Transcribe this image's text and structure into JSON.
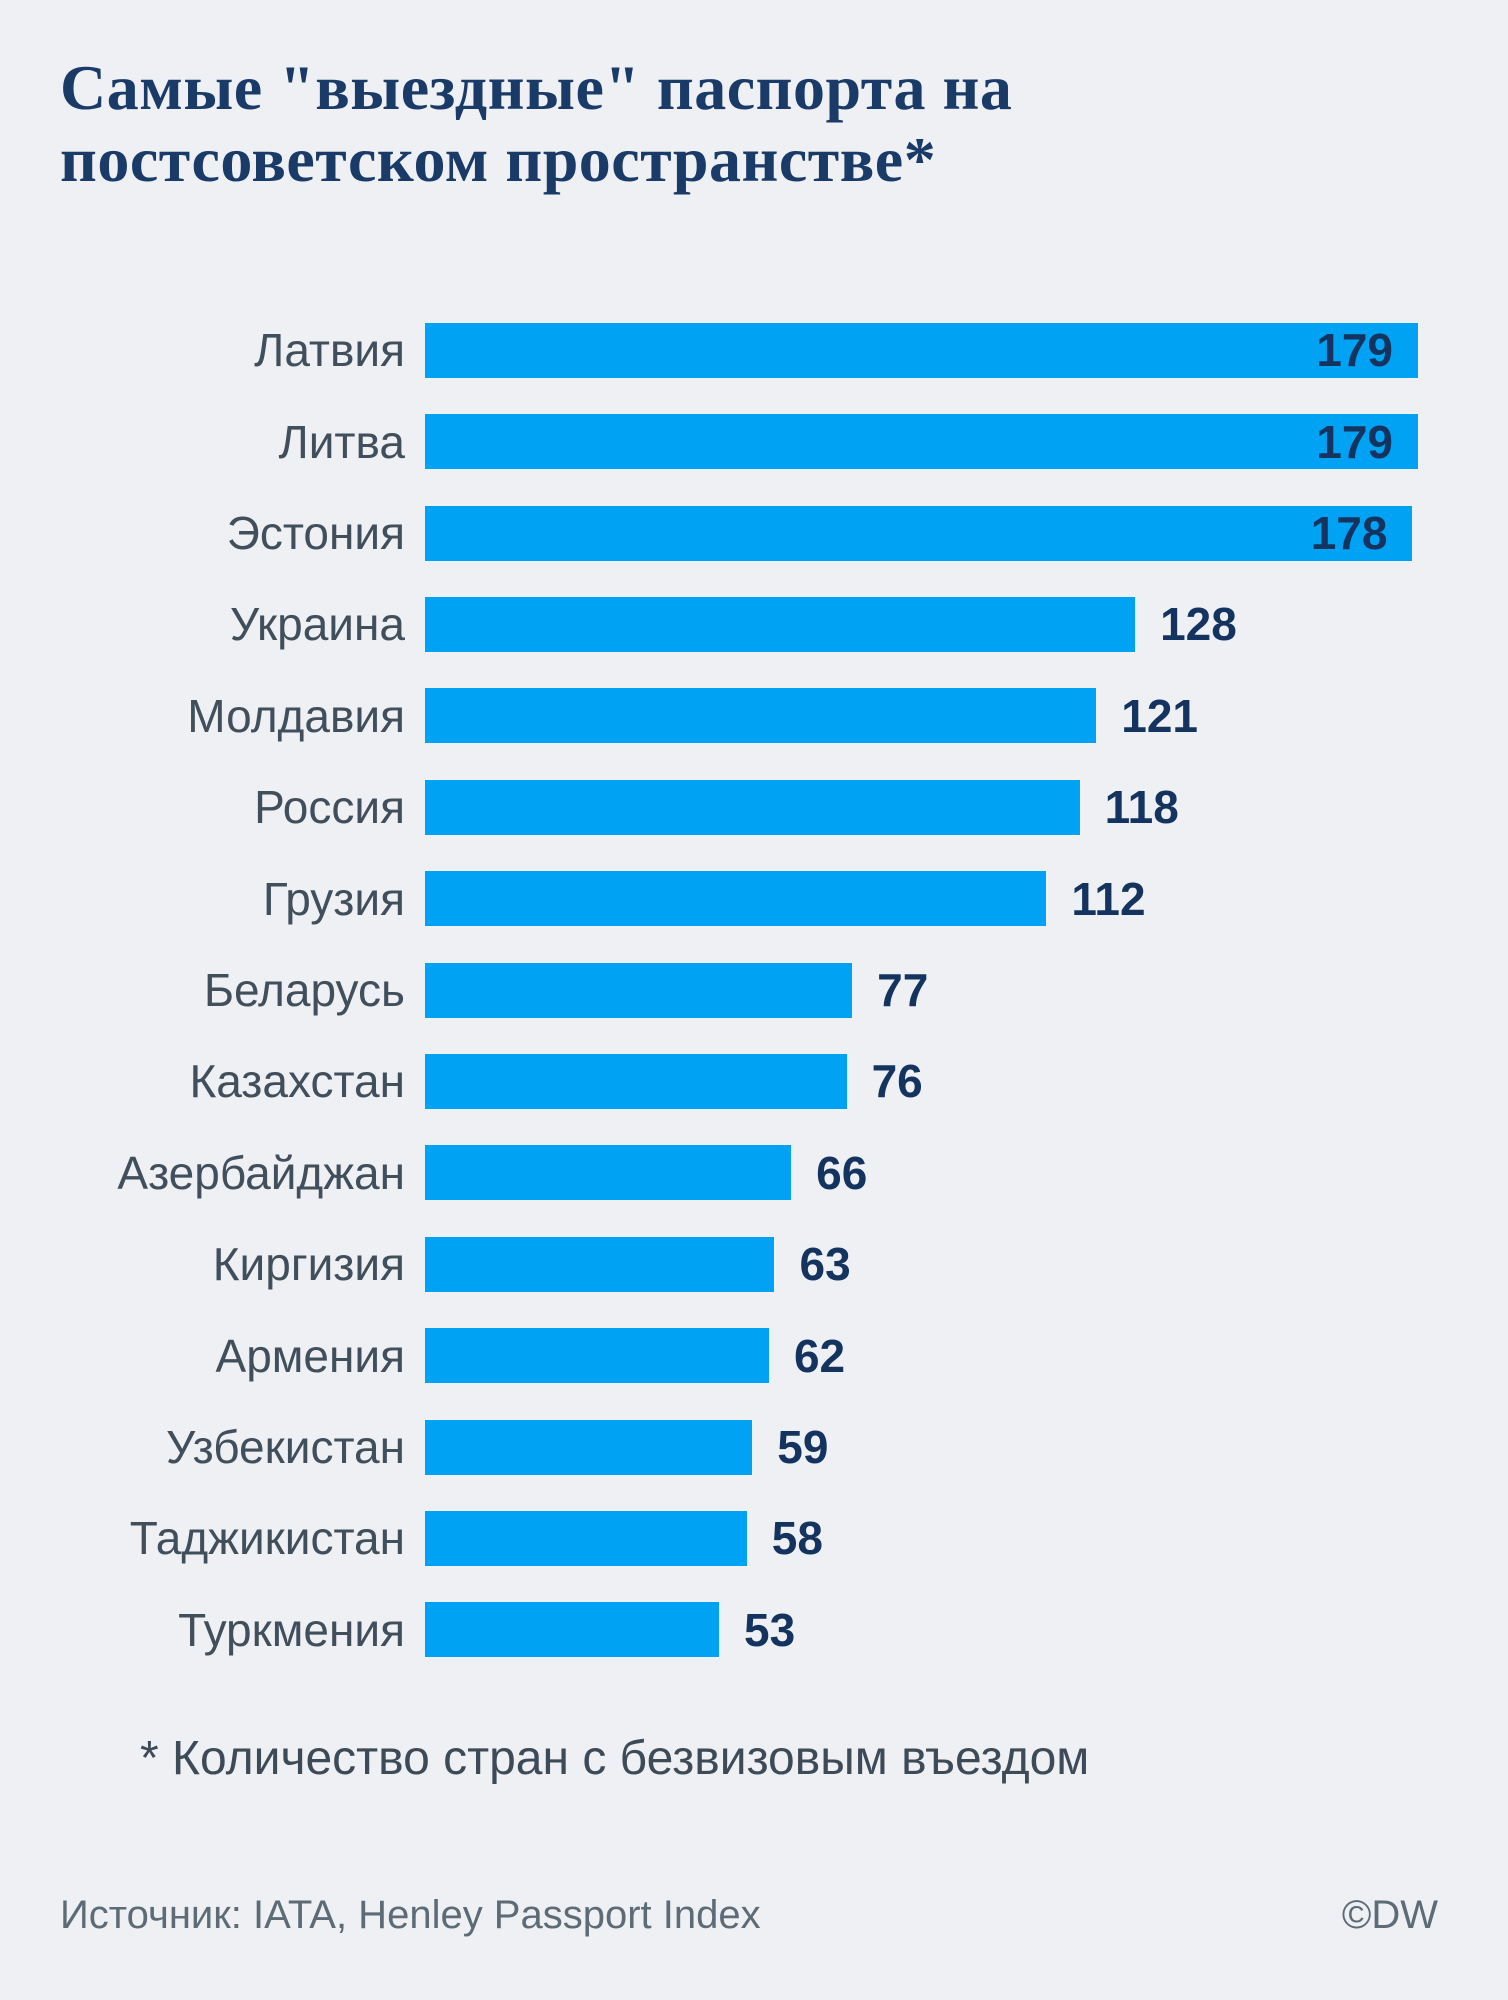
{
  "title": "Самые \"выездные\" паспорта на постсоветском пространстве*",
  "chart_data": {
    "type": "bar",
    "orientation": "horizontal",
    "title": "Самые \"выездные\" паспорта на постсоветском пространстве*",
    "categories": [
      "Латвия",
      "Литва",
      "Эстония",
      "Украина",
      "Молдавия",
      "Россия",
      "Грузия",
      "Беларусь",
      "Казахстан",
      "Азербайджан",
      "Киргизия",
      "Армения",
      "Узбекистан",
      "Таджикистан",
      "Туркмения"
    ],
    "values": [
      179,
      179,
      178,
      128,
      121,
      118,
      112,
      77,
      76,
      66,
      63,
      62,
      59,
      58,
      53
    ],
    "value_label_inside": [
      true,
      true,
      true,
      false,
      false,
      false,
      false,
      false,
      false,
      false,
      false,
      false,
      false,
      false,
      false
    ],
    "xlim": [
      0,
      179
    ],
    "grid": false,
    "legend": false,
    "bar_color": "#00a2f3",
    "value_label_color": "#14345f",
    "category_label_color": "#414e5c"
  },
  "footnote": "* Количество стран с безвизовым въездом",
  "footer": {
    "source": "Источник: IATA, Henley Passport Index",
    "credit": "©DW"
  },
  "colors": {
    "background": "#eef0f3",
    "title": "#1a3a68",
    "footnote": "#3d4a57",
    "footer": "#5d6b77"
  }
}
